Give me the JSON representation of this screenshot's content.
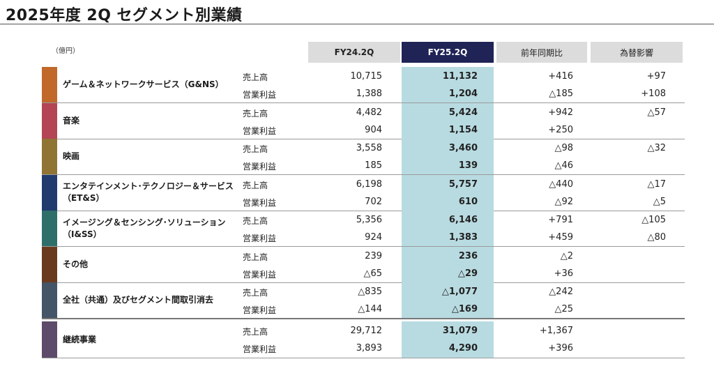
{
  "title": "2025年度 2Q セグメント別業績",
  "unit": "（億円）",
  "columns": {
    "fy24": "FY24.2Q",
    "fy25": "FY25.2Q",
    "yoy": "前年同期比",
    "fx": "為替影響"
  },
  "segments": [
    {
      "name": "ゲーム＆ネットワークサービス（G&NS）",
      "color": "#c0692a",
      "rows": [
        {
          "label": "売上高",
          "fy24": "10,715",
          "fy25": "11,132",
          "yoy": "+416",
          "fx": "+97"
        },
        {
          "label": "営業利益",
          "fy24": "1,388",
          "fy25": "1,204",
          "yoy": "△185",
          "fx": "+108"
        }
      ]
    },
    {
      "name": "音楽",
      "color": "#b34554",
      "rows": [
        {
          "label": "売上高",
          "fy24": "4,482",
          "fy25": "5,424",
          "yoy": "+942",
          "fx": "△57"
        },
        {
          "label": "営業利益",
          "fy24": "904",
          "fy25": "1,154",
          "yoy": "+250",
          "fx": ""
        }
      ]
    },
    {
      "name": "映画",
      "color": "#8f7433",
      "rows": [
        {
          "label": "売上高",
          "fy24": "3,558",
          "fy25": "3,460",
          "yoy": "△98",
          "fx": "△32"
        },
        {
          "label": "営業利益",
          "fy24": "185",
          "fy25": "139",
          "yoy": "△46",
          "fx": ""
        }
      ]
    },
    {
      "name": "エンタテインメント･テクノロジー＆サービス（ET&S）",
      "color": "#213b6e",
      "rows": [
        {
          "label": "売上高",
          "fy24": "6,198",
          "fy25": "5,757",
          "yoy": "△440",
          "fx": "△17"
        },
        {
          "label": "営業利益",
          "fy24": "702",
          "fy25": "610",
          "yoy": "△92",
          "fx": "△5"
        }
      ]
    },
    {
      "name": "イメージング＆センシング･ソリューション（I&SS）",
      "color": "#2e6f6a",
      "rows": [
        {
          "label": "売上高",
          "fy24": "5,356",
          "fy25": "6,146",
          "yoy": "+791",
          "fx": "△105"
        },
        {
          "label": "営業利益",
          "fy24": "924",
          "fy25": "1,383",
          "yoy": "+459",
          "fx": "△80"
        }
      ]
    },
    {
      "name": "その他",
      "color": "#6a3a1e",
      "rows": [
        {
          "label": "売上高",
          "fy24": "239",
          "fy25": "236",
          "yoy": "△2",
          "fx": ""
        },
        {
          "label": "営業利益",
          "fy24": "△65",
          "fy25": "△29",
          "yoy": "+36",
          "fx": ""
        }
      ]
    },
    {
      "name": "全社（共通）及びセグメント間取引消去",
      "color": "#435566",
      "rows": [
        {
          "label": "売上高",
          "fy24": "△835",
          "fy25": "△1,077",
          "yoy": "△242",
          "fx": ""
        },
        {
          "label": "営業利益",
          "fy24": "△144",
          "fy25": "△169",
          "yoy": "△25",
          "fx": ""
        }
      ]
    }
  ],
  "total": {
    "name": "継続事業",
    "color": "#5e4a6a",
    "rows": [
      {
        "label": "売上高",
        "fy24": "29,712",
        "fy25": "31,079",
        "yoy": "+1,367",
        "fx": ""
      },
      {
        "label": "営業利益",
        "fy24": "3,893",
        "fy25": "4,290",
        "yoy": "+396",
        "fx": ""
      }
    ]
  }
}
